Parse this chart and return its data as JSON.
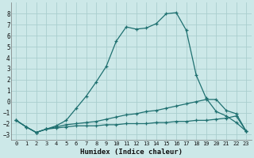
{
  "xlabel": "Humidex (Indice chaleur)",
  "background_color": "#cce8e8",
  "grid_color": "#aacece",
  "line_color": "#1e7070",
  "xlim": [
    -0.5,
    23.5
  ],
  "ylim": [
    -3.5,
    9.0
  ],
  "yticks": [
    -3,
    -2,
    -1,
    0,
    1,
    2,
    3,
    4,
    5,
    6,
    7,
    8
  ],
  "xticks": [
    0,
    1,
    2,
    3,
    4,
    5,
    6,
    7,
    8,
    9,
    10,
    11,
    12,
    13,
    14,
    15,
    16,
    17,
    18,
    19,
    20,
    21,
    22,
    23
  ],
  "curve_main_x": [
    0,
    1,
    2,
    3,
    4,
    5,
    6,
    7,
    8,
    9,
    10,
    11,
    12,
    13,
    14,
    15,
    16,
    17,
    18,
    19,
    20,
    21,
    22,
    23
  ],
  "curve_main_y": [
    -1.7,
    -2.3,
    -2.8,
    -2.5,
    -2.2,
    -1.7,
    -0.6,
    0.5,
    1.8,
    3.2,
    5.5,
    6.8,
    6.6,
    6.7,
    7.1,
    8.0,
    8.1,
    6.5,
    2.4,
    0.3,
    -0.9,
    -1.3,
    -1.9,
    -2.7
  ],
  "curve_mid_x": [
    0,
    1,
    2,
    3,
    4,
    5,
    6,
    7,
    8,
    9,
    10,
    11,
    12,
    13,
    14,
    15,
    16,
    17,
    18,
    19,
    20,
    21,
    22,
    23
  ],
  "curve_mid_y": [
    -1.7,
    -2.3,
    -2.8,
    -2.5,
    -2.3,
    -2.1,
    -2.0,
    -1.9,
    -1.8,
    -1.6,
    -1.4,
    -1.2,
    -1.1,
    -0.9,
    -0.8,
    -0.6,
    -0.4,
    -0.2,
    0.0,
    0.2,
    0.2,
    -0.8,
    -1.1,
    -2.7
  ],
  "curve_flat_x": [
    0,
    1,
    2,
    3,
    4,
    5,
    6,
    7,
    8,
    9,
    10,
    11,
    12,
    13,
    14,
    15,
    16,
    17,
    18,
    19,
    20,
    21,
    22,
    23
  ],
  "curve_flat_y": [
    -1.7,
    -2.3,
    -2.8,
    -2.5,
    -2.4,
    -2.3,
    -2.2,
    -2.2,
    -2.2,
    -2.1,
    -2.1,
    -2.0,
    -2.0,
    -2.0,
    -1.9,
    -1.9,
    -1.8,
    -1.8,
    -1.7,
    -1.7,
    -1.6,
    -1.5,
    -1.3,
    -2.7
  ]
}
